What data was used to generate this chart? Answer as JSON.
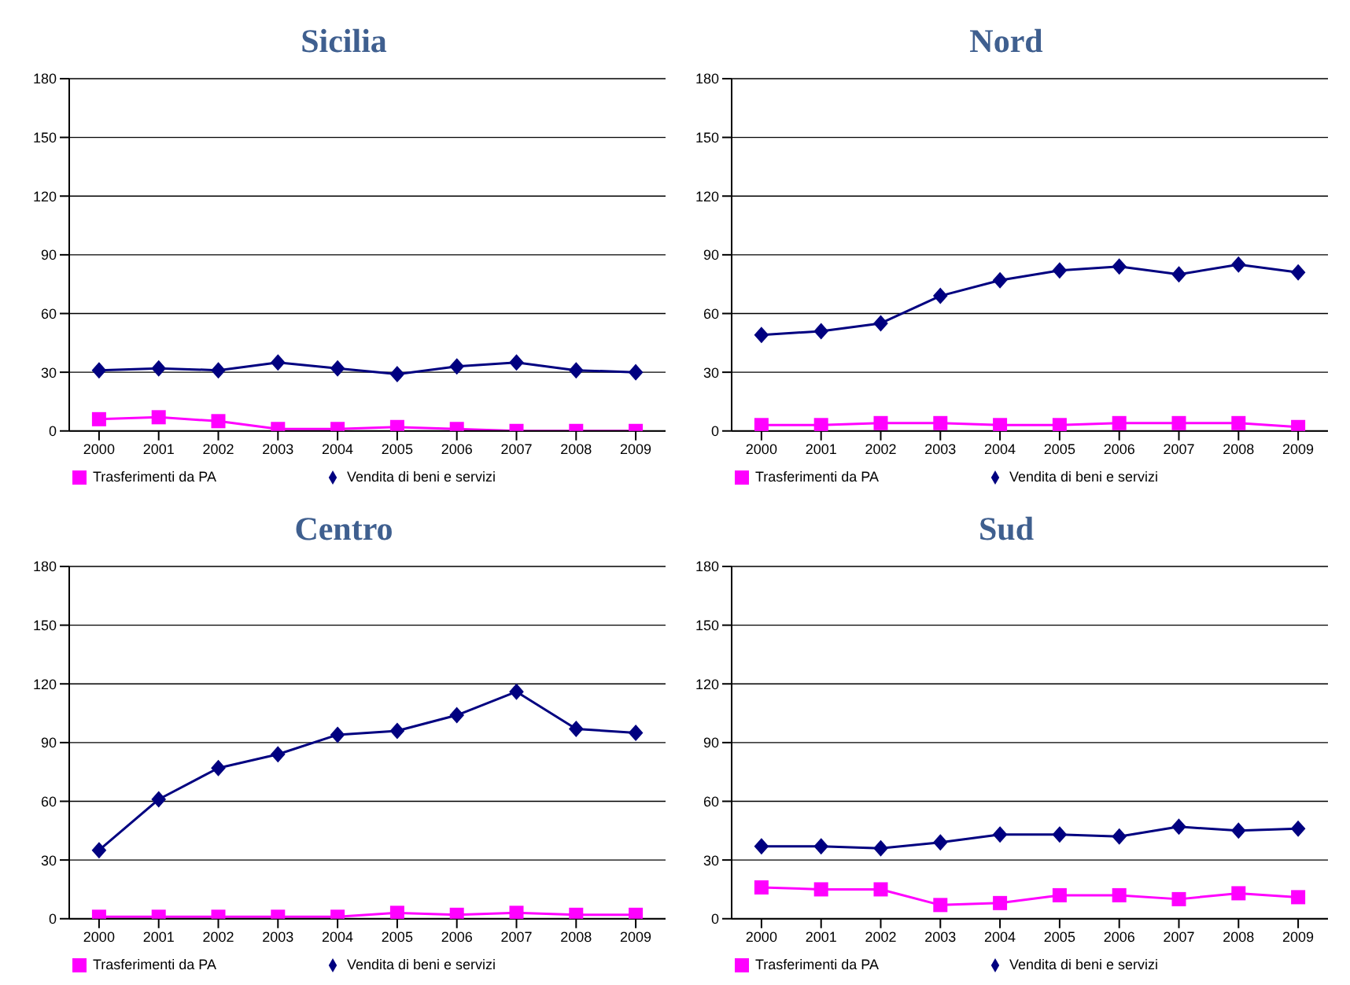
{
  "chart_data": [
    {
      "type": "line",
      "title": "Sicilia",
      "categories": [
        "2000",
        "2001",
        "2002",
        "2003",
        "2004",
        "2005",
        "2006",
        "2007",
        "2008",
        "2009"
      ],
      "series": [
        {
          "name": "Vendita di beni e servizi",
          "color": "#000080",
          "marker": "diamond",
          "values": [
            31,
            32,
            31,
            35,
            32,
            29,
            33,
            35,
            31,
            30
          ]
        },
        {
          "name": "Trasferimenti da PA",
          "color": "#ff00ff",
          "marker": "square",
          "values": [
            6,
            7,
            5,
            1,
            1,
            2,
            1,
            0,
            0,
            0
          ]
        }
      ],
      "ylim": [
        0,
        180
      ],
      "yticks": [
        0,
        30,
        60,
        90,
        120,
        150,
        180
      ],
      "grid": "y",
      "legend": "bottom"
    },
    {
      "type": "line",
      "title": "Nord",
      "categories": [
        "2000",
        "2001",
        "2002",
        "2003",
        "2004",
        "2005",
        "2006",
        "2007",
        "2008",
        "2009"
      ],
      "series": [
        {
          "name": "Vendita di beni e servizi",
          "color": "#000080",
          "marker": "diamond",
          "values": [
            49,
            51,
            55,
            69,
            77,
            82,
            84,
            80,
            85,
            81
          ]
        },
        {
          "name": "Trasferimenti da PA",
          "color": "#ff00ff",
          "marker": "square",
          "values": [
            3,
            3,
            4,
            4,
            3,
            3,
            4,
            4,
            4,
            2
          ]
        }
      ],
      "ylim": [
        0,
        180
      ],
      "yticks": [
        0,
        30,
        60,
        90,
        120,
        150,
        180
      ],
      "grid": "y",
      "legend": "bottom"
    },
    {
      "type": "line",
      "title": "Centro",
      "categories": [
        "2000",
        "2001",
        "2002",
        "2003",
        "2004",
        "2005",
        "2006",
        "2007",
        "2008",
        "2009"
      ],
      "series": [
        {
          "name": "Vendita di beni e servizi",
          "color": "#000080",
          "marker": "diamond",
          "values": [
            35,
            61,
            77,
            84,
            94,
            96,
            104,
            116,
            97,
            95
          ]
        },
        {
          "name": "Trasferimenti da PA",
          "color": "#ff00ff",
          "marker": "square",
          "values": [
            1,
            1,
            1,
            1,
            1,
            3,
            2,
            3,
            2,
            2
          ]
        }
      ],
      "ylim": [
        0,
        180
      ],
      "yticks": [
        0,
        30,
        60,
        90,
        120,
        150,
        180
      ],
      "grid": "y",
      "legend": "bottom"
    },
    {
      "type": "line",
      "title": "Sud",
      "categories": [
        "2000",
        "2001",
        "2002",
        "2003",
        "2004",
        "2005",
        "2006",
        "2007",
        "2008",
        "2009"
      ],
      "series": [
        {
          "name": "Vendita di beni e servizi",
          "color": "#000080",
          "marker": "diamond",
          "values": [
            37,
            37,
            36,
            39,
            43,
            43,
            42,
            47,
            45,
            46
          ]
        },
        {
          "name": "Trasferimenti da PA",
          "color": "#ff00ff",
          "marker": "square",
          "values": [
            16,
            15,
            15,
            7,
            8,
            12,
            12,
            10,
            13,
            11
          ]
        }
      ],
      "ylim": [
        0,
        180
      ],
      "yticks": [
        0,
        30,
        60,
        90,
        120,
        150,
        180
      ],
      "grid": "y",
      "legend": "bottom"
    }
  ]
}
